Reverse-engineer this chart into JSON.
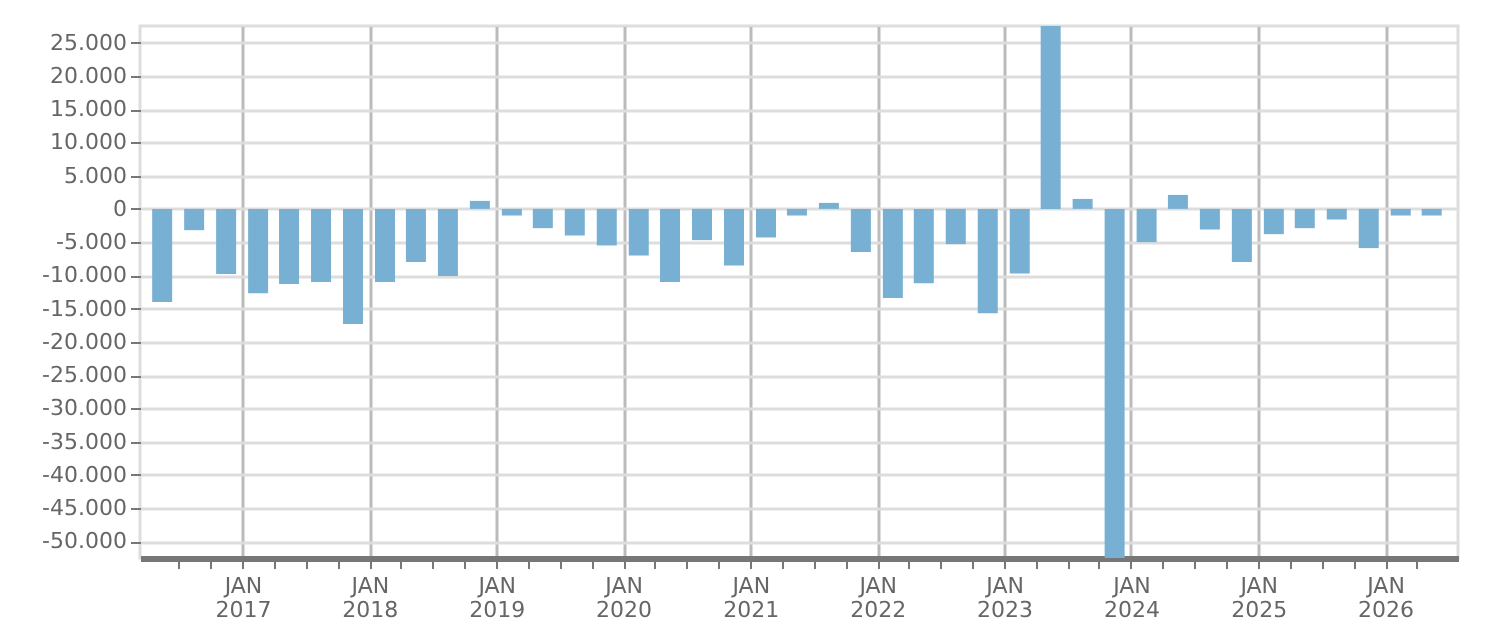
{
  "chart_data": {
    "type": "bar",
    "color": "#77b0d3",
    "x": [
      "2016-05-15",
      "2016-08-15",
      "2016-11-15",
      "2017-02-15",
      "2017-05-15",
      "2017-08-15",
      "2017-11-15",
      "2018-02-15",
      "2018-05-15",
      "2018-08-15",
      "2018-11-15",
      "2019-02-15",
      "2019-05-15",
      "2019-08-15",
      "2019-11-15",
      "2020-02-15",
      "2020-05-15",
      "2020-08-15",
      "2020-11-15",
      "2021-02-15",
      "2021-05-15",
      "2021-08-15",
      "2021-11-15",
      "2022-02-15",
      "2022-05-15",
      "2022-08-15",
      "2022-11-15",
      "2023-02-15",
      "2023-05-15",
      "2023-08-15",
      "2023-11-15",
      "2024-02-15",
      "2024-05-15",
      "2024-08-15",
      "2024-11-15",
      "2025-02-15",
      "2025-05-15",
      "2025-08-15",
      "2025-11-15",
      "2026-02-15",
      "2026-05-15"
    ],
    "values": [
      -14000,
      -3200,
      -9800,
      -12700,
      -11300,
      -11000,
      -17300,
      -11000,
      -8000,
      -10100,
      1200,
      -1000,
      -2900,
      -4000,
      -5500,
      -7000,
      -11000,
      -4700,
      -8500,
      -4300,
      -1000,
      900,
      -6500,
      -13400,
      -11200,
      -5300,
      -15700,
      -9700,
      27500,
      1500,
      -52500,
      -5000,
      2100,
      -3100,
      -8000,
      -3800,
      -2900,
      -1600,
      -5900,
      -1000,
      -1000
    ],
    "xlim": [
      "2016-04-10",
      "2026-07-01"
    ],
    "xticks": [
      {
        "value": "2016-07-01",
        "label": null
      },
      {
        "value": "2016-10-01",
        "label": null
      },
      {
        "value": "2017-01-01",
        "label": "JAN 2017"
      },
      {
        "value": "2017-04-01",
        "label": null
      },
      {
        "value": "2017-07-01",
        "label": null
      },
      {
        "value": "2017-10-01",
        "label": null
      },
      {
        "value": "2018-01-01",
        "label": "JAN 2018"
      },
      {
        "value": "2018-04-01",
        "label": null
      },
      {
        "value": "2018-07-01",
        "label": null
      },
      {
        "value": "2018-10-01",
        "label": null
      },
      {
        "value": "2019-01-01",
        "label": "JAN 2019"
      },
      {
        "value": "2019-04-01",
        "label": null
      },
      {
        "value": "2019-07-01",
        "label": null
      },
      {
        "value": "2019-10-01",
        "label": null
      },
      {
        "value": "2020-01-01",
        "label": "JAN 2020"
      },
      {
        "value": "2020-04-01",
        "label": null
      },
      {
        "value": "2020-07-01",
        "label": null
      },
      {
        "value": "2020-10-01",
        "label": null
      },
      {
        "value": "2021-01-01",
        "label": "JAN 2021"
      },
      {
        "value": "2021-04-01",
        "label": null
      },
      {
        "value": "2021-07-01",
        "label": null
      },
      {
        "value": "2021-10-01",
        "label": null
      },
      {
        "value": "2022-01-01",
        "label": "JAN 2022"
      },
      {
        "value": "2022-04-01",
        "label": null
      },
      {
        "value": "2022-07-01",
        "label": null
      },
      {
        "value": "2022-10-01",
        "label": null
      },
      {
        "value": "2023-01-01",
        "label": "JAN 2023"
      },
      {
        "value": "2023-04-01",
        "label": null
      },
      {
        "value": "2023-07-01",
        "label": null
      },
      {
        "value": "2023-10-01",
        "label": null
      },
      {
        "value": "2024-01-01",
        "label": "JAN 2024"
      },
      {
        "value": "2024-04-01",
        "label": null
      },
      {
        "value": "2024-07-01",
        "label": null
      },
      {
        "value": "2024-10-01",
        "label": null
      },
      {
        "value": "2025-01-01",
        "label": "JAN 2025"
      },
      {
        "value": "2025-04-01",
        "label": null
      },
      {
        "value": "2025-07-01",
        "label": null
      },
      {
        "value": "2025-10-01",
        "label": null
      },
      {
        "value": "2026-01-01",
        "label": "JAN 2026"
      },
      {
        "value": "2026-04-01",
        "label": null
      }
    ],
    "ylim": [
      -52500,
      27500
    ],
    "yticks": [
      {
        "value": -50000,
        "label": "-50.000"
      },
      {
        "value": -45000,
        "label": "-45.000"
      },
      {
        "value": -40000,
        "label": "-40.000"
      },
      {
        "value": -35000,
        "label": "-35.000"
      },
      {
        "value": -30000,
        "label": "-30.000"
      },
      {
        "value": -25000,
        "label": "-25.000"
      },
      {
        "value": -20000,
        "label": "-20.000"
      },
      {
        "value": -15000,
        "label": "-15.000"
      },
      {
        "value": -10000,
        "label": "-10.000"
      },
      {
        "value": -5000,
        "label": "-5.000"
      },
      {
        "value": 0,
        "label": "0"
      },
      {
        "value": 5000,
        "label": "5.000"
      },
      {
        "value": 10000,
        "label": "10.000"
      },
      {
        "value": 15000,
        "label": "15.000"
      },
      {
        "value": 20000,
        "label": "20.000"
      },
      {
        "value": 25000,
        "label": "25.000"
      }
    ],
    "grid": true
  }
}
